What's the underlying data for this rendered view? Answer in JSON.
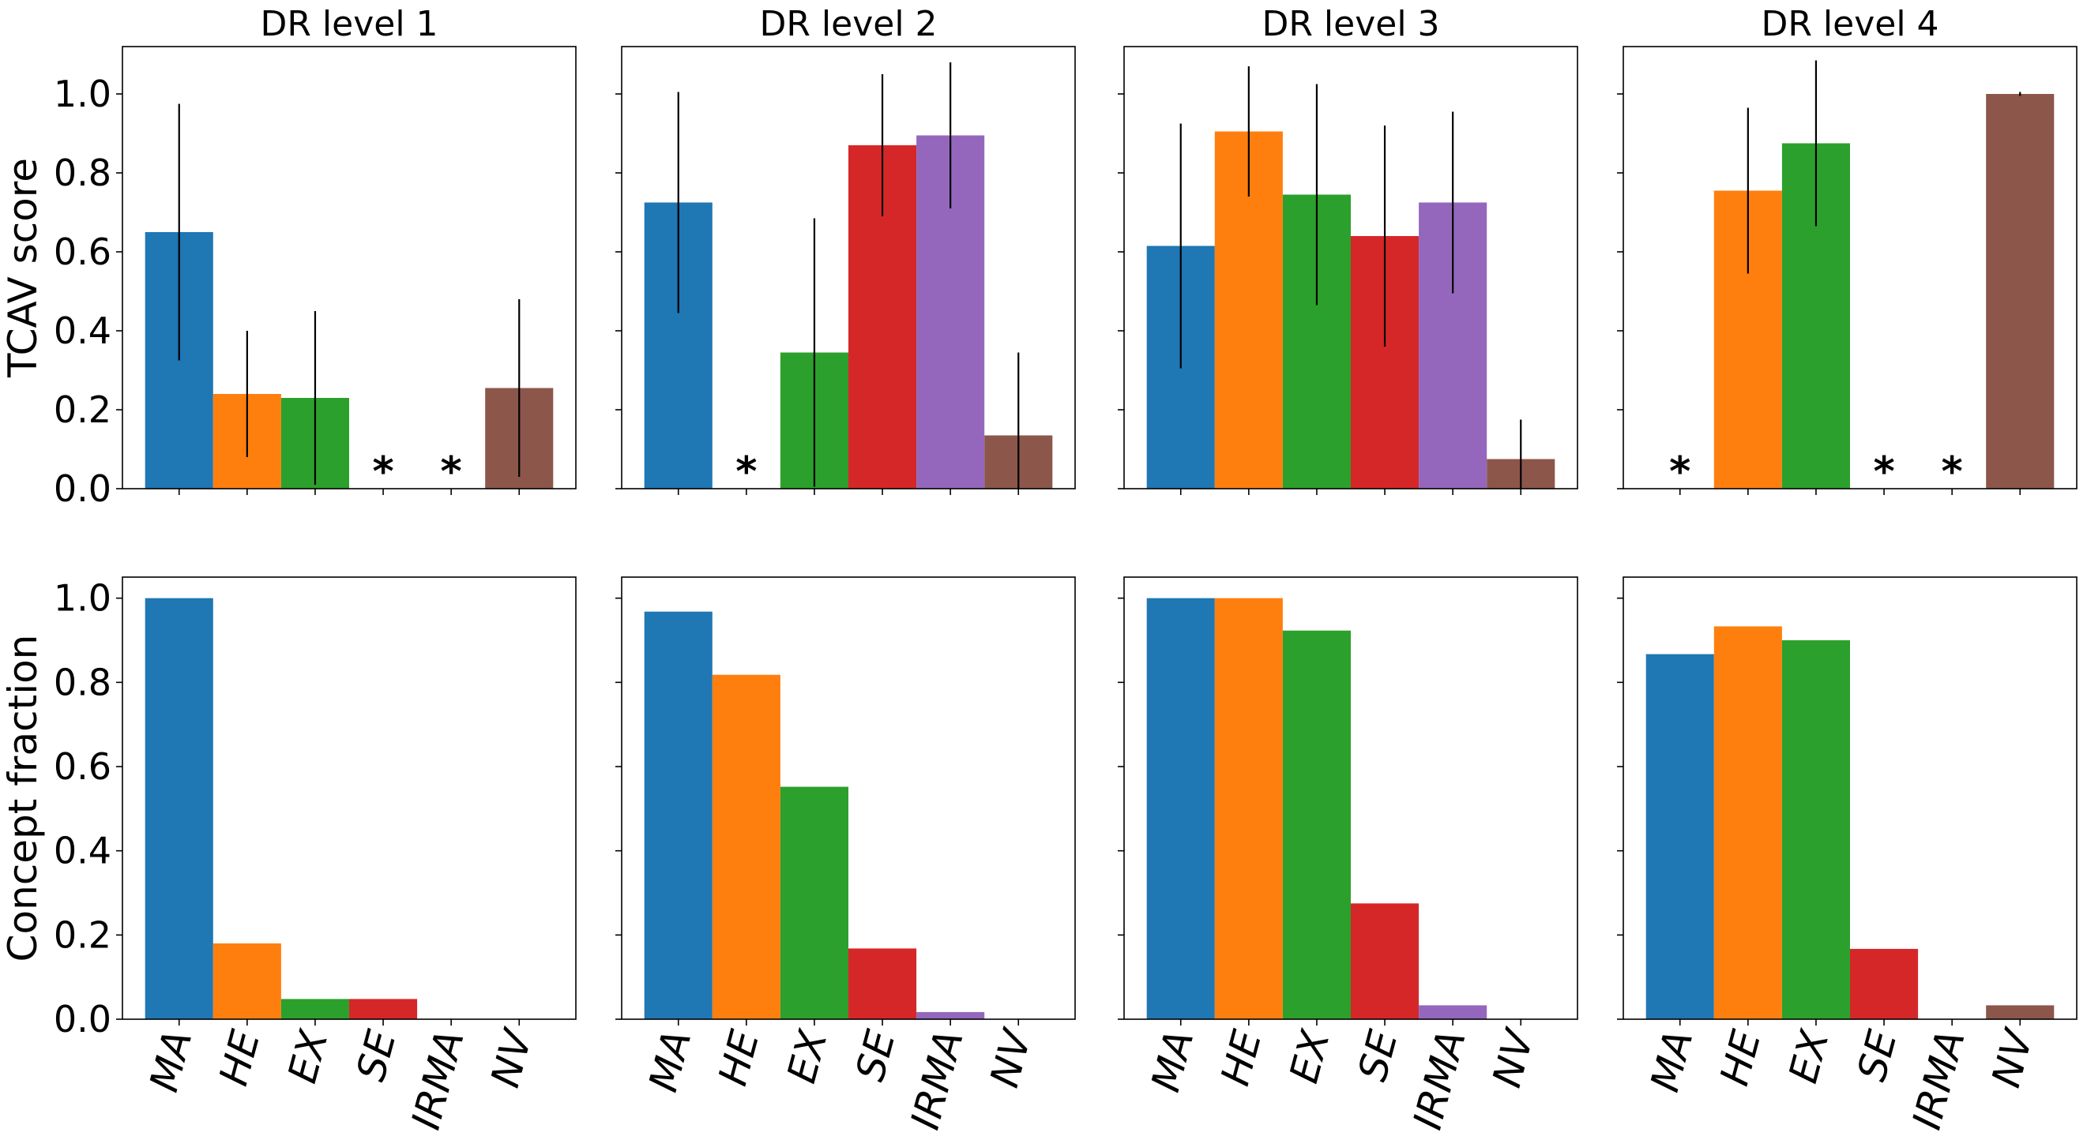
{
  "chart_data": {
    "type": "bar",
    "categories": [
      "MA",
      "HE",
      "EX",
      "SE",
      "IRMA",
      "NV"
    ],
    "colors": {
      "MA": "#1f77b4",
      "HE": "#ff7f0e",
      "EX": "#2ca02c",
      "SE": "#d62728",
      "IRMA": "#9467bd",
      "NV": "#8c564b"
    },
    "marker_symbol": "*",
    "rows": [
      {
        "ylabel": "TCAV score",
        "ylim": [
          0,
          1.12
        ],
        "yticks": [
          "0.0",
          "0.2",
          "0.4",
          "0.6",
          "0.8",
          "1.0"
        ],
        "panels": [
          {
            "title": "DR level 1",
            "values": [
              0.65,
              0.24,
              0.23,
              null,
              null,
              0.255
            ],
            "errors": [
              0.325,
              0.16,
              0.22,
              null,
              null,
              0.225
            ]
          },
          {
            "title": "DR level 2",
            "values": [
              0.725,
              null,
              0.345,
              0.87,
              0.895,
              0.135
            ],
            "errors": [
              0.28,
              null,
              0.34,
              0.18,
              0.185,
              0.21
            ]
          },
          {
            "title": "DR level 3",
            "values": [
              0.615,
              0.905,
              0.745,
              0.64,
              0.725,
              0.075
            ],
            "errors": [
              0.31,
              0.165,
              0.28,
              0.28,
              0.23,
              0.1
            ]
          },
          {
            "title": "DR level 4",
            "values": [
              null,
              0.755,
              0.875,
              null,
              null,
              1.0
            ],
            "errors": [
              null,
              0.21,
              0.21,
              null,
              null,
              0.005
            ]
          }
        ]
      },
      {
        "ylabel": "Concept fraction",
        "ylim": [
          0,
          1.05
        ],
        "yticks": [
          "0.0",
          "0.2",
          "0.4",
          "0.6",
          "0.8",
          "1.0"
        ],
        "panels": [
          {
            "values": [
              1.0,
              0.18,
              0.048,
              0.048,
              0.0,
              0.0
            ]
          },
          {
            "values": [
              0.968,
              0.818,
              0.552,
              0.168,
              0.017,
              0.0
            ]
          },
          {
            "values": [
              1.0,
              1.0,
              0.923,
              0.275,
              0.033,
              0.0
            ]
          },
          {
            "values": [
              0.867,
              0.933,
              0.9,
              0.167,
              0.0,
              0.033
            ]
          }
        ]
      }
    ]
  }
}
